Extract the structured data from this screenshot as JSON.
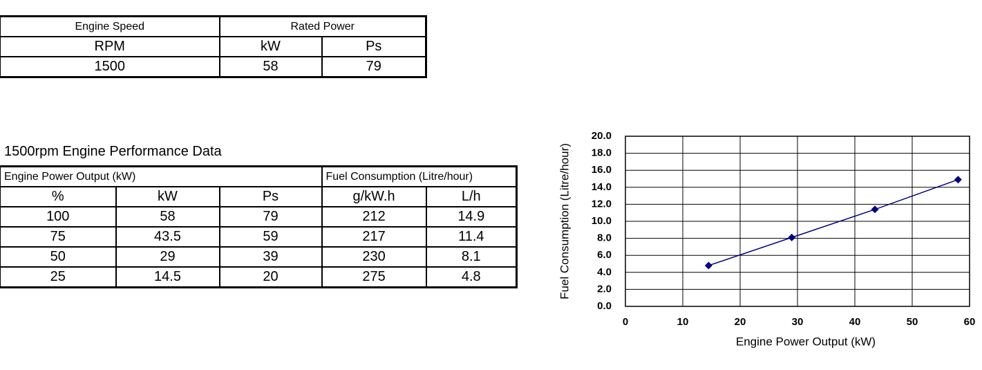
{
  "rated_table": {
    "headers": [
      "Engine Speed",
      "Rated Power"
    ],
    "units": [
      "RPM",
      "kW",
      "Ps"
    ],
    "row": [
      "1500",
      "58",
      "79"
    ]
  },
  "performance": {
    "title": "1500rpm Engine Performance Data",
    "group_headers": [
      "Engine Power Output (kW)",
      "Fuel Consumption (Litre/hour)"
    ],
    "columns": [
      "%",
      "kW",
      "Ps",
      "g/kW.h",
      "L/h"
    ],
    "rows": [
      [
        "100",
        "58",
        "79",
        "212",
        "14.9"
      ],
      [
        "75",
        "43.5",
        "59",
        "217",
        "11.4"
      ],
      [
        "50",
        "29",
        "39",
        "230",
        "8.1"
      ],
      [
        "25",
        "14.5",
        "20",
        "275",
        "4.8"
      ]
    ]
  },
  "chart_data": {
    "type": "line",
    "x_label": "Engine Power Output (kW)",
    "y_label": "Fuel Consumption (Litre/hour)",
    "x": [
      14.5,
      29,
      43.5,
      58
    ],
    "values": [
      4.8,
      8.1,
      11.4,
      14.9
    ],
    "color": "#000080",
    "xlim": [
      0,
      60
    ],
    "xticks": [
      0,
      10,
      20,
      30,
      40,
      50,
      60
    ],
    "ylim": [
      0,
      20
    ],
    "yticks": [
      {
        "value": 0,
        "label": "0.0"
      },
      {
        "value": 2,
        "label": "2.0"
      },
      {
        "value": 4,
        "label": "4.0"
      },
      {
        "value": 6,
        "label": "6.0"
      },
      {
        "value": 8,
        "label": "8.0"
      },
      {
        "value": 10,
        "label": "10.0"
      },
      {
        "value": 12,
        "label": "12.0"
      },
      {
        "value": 14,
        "label": "14.0"
      },
      {
        "value": 16,
        "label": "16.0"
      },
      {
        "value": 18,
        "label": "18.0"
      },
      {
        "value": 20,
        "label": "20.0"
      }
    ],
    "grid": true
  }
}
